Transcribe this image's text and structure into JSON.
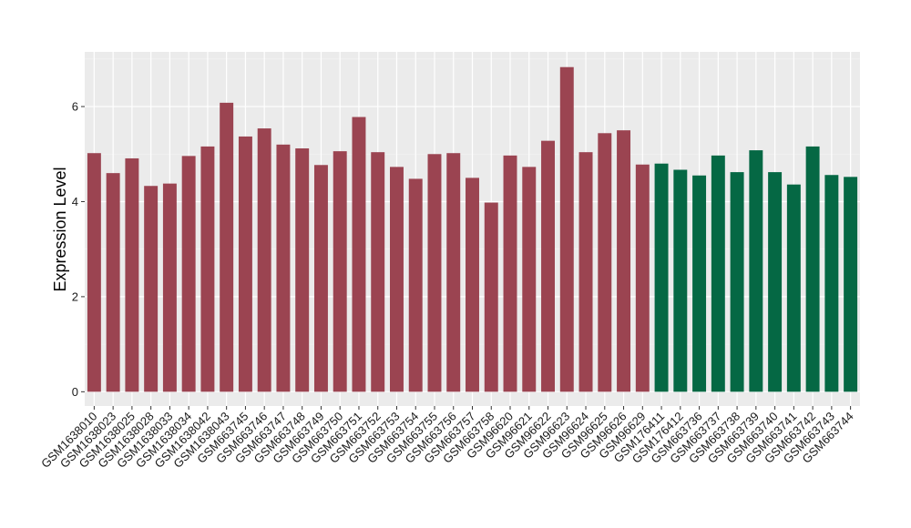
{
  "chart_data": {
    "type": "bar",
    "ylabel": "Expression Level",
    "xlabel": "",
    "ylim": [
      -0.3,
      7.15
    ],
    "yticks": [
      0,
      2,
      4,
      6
    ],
    "grid": true,
    "background": "#ebebeb",
    "categories": [
      "GSM1638010",
      "GSM1638023",
      "GSM1638025",
      "GSM1638028",
      "GSM1638033",
      "GSM1638034",
      "GSM1638042",
      "GSM1638043",
      "GSM663745",
      "GSM663746",
      "GSM663747",
      "GSM663748",
      "GSM663749",
      "GSM663750",
      "GSM663751",
      "GSM663752",
      "GSM663753",
      "GSM663754",
      "GSM663755",
      "GSM663756",
      "GSM663757",
      "GSM663758",
      "GSM96620",
      "GSM96621",
      "GSM96622",
      "GSM96623",
      "GSM96624",
      "GSM96625",
      "GSM96626",
      "GSM96629",
      "GSM176411",
      "GSM176412",
      "GSM663736",
      "GSM663737",
      "GSM663738",
      "GSM663739",
      "GSM663740",
      "GSM663741",
      "GSM663742",
      "GSM663743",
      "GSM663744"
    ],
    "values": [
      5.02,
      4.6,
      4.91,
      4.33,
      4.38,
      4.96,
      5.16,
      6.08,
      5.37,
      5.54,
      5.2,
      5.12,
      4.77,
      5.06,
      5.78,
      5.04,
      4.73,
      4.48,
      5.0,
      5.02,
      4.5,
      3.98,
      4.97,
      4.73,
      5.28,
      6.83,
      5.04,
      5.44,
      5.5,
      4.78,
      4.8,
      4.67,
      4.55,
      4.97,
      4.62,
      5.08,
      4.62,
      4.36,
      5.16,
      4.56,
      4.52
    ],
    "groups": [
      0,
      0,
      0,
      0,
      0,
      0,
      0,
      0,
      0,
      0,
      0,
      0,
      0,
      0,
      0,
      0,
      0,
      0,
      0,
      0,
      0,
      0,
      0,
      0,
      0,
      0,
      0,
      0,
      0,
      0,
      1,
      1,
      1,
      1,
      1,
      1,
      1,
      1,
      1,
      1,
      1
    ],
    "group_colors": [
      "#9b4451",
      "#056844"
    ]
  }
}
